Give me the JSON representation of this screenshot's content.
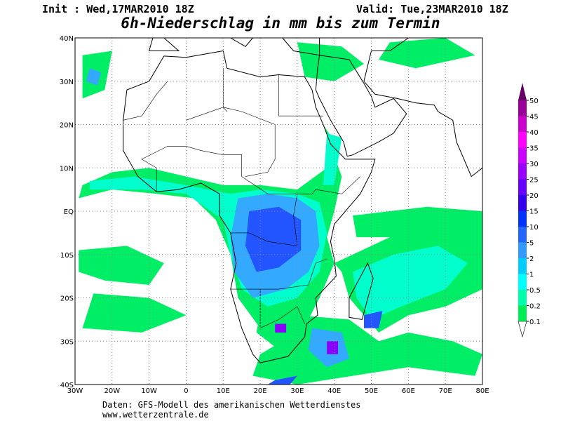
{
  "header": {
    "init": "Init : Wed,17MAR2010 18Z",
    "valid": "Valid: Tue,23MAR2010 18Z",
    "title": "6h-Niederschlag in mm bis zum Termin"
  },
  "lon_labels": [
    "30W",
    "20W",
    "10W",
    "0",
    "10E",
    "20E",
    "30E",
    "40E",
    "50E",
    "60E",
    "70E",
    "80E"
  ],
  "lat_labels": [
    "40N",
    "30N",
    "20N",
    "10N",
    "EQ",
    "10S",
    "20S",
    "30S",
    "40S"
  ],
  "legend": [
    "0.1",
    "0.2",
    "0.5",
    "1",
    "2",
    "5",
    "10",
    "15",
    "20",
    "25",
    "30",
    "35",
    "40",
    "45",
    "50"
  ],
  "footer": {
    "source": "Daten: GFS-Modell des amerikanischen Wetterdienstes",
    "site": "www.wetterzentrale.de"
  }
}
